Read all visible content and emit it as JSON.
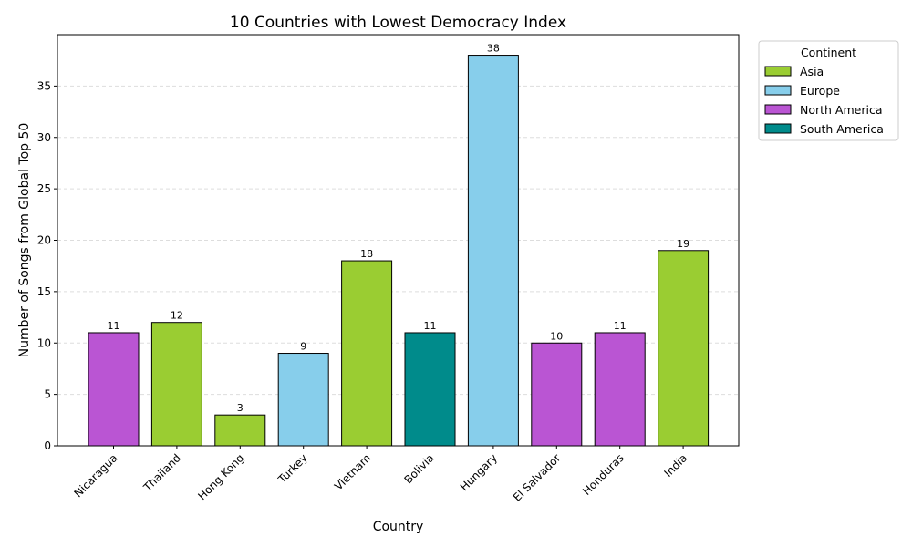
{
  "chart_data": {
    "type": "bar",
    "title": "10 Countries with Lowest Democracy Index",
    "xlabel": "Country",
    "ylabel": "Number of Songs from Global Top 50",
    "ylim": [
      0,
      40
    ],
    "yticks": [
      0,
      5,
      10,
      15,
      20,
      25,
      30,
      35
    ],
    "grid": "y-dashed",
    "categories": [
      "Nicaragua",
      "Thailand",
      "Hong Kong",
      "Turkey",
      "Vietnam",
      "Bolivia",
      "Hungary",
      "El Salvador",
      "Honduras",
      "India"
    ],
    "values": [
      11,
      12,
      3,
      9,
      18,
      11,
      38,
      10,
      11,
      19
    ],
    "bar_continents": [
      "North America",
      "Asia",
      "Asia",
      "Europe",
      "Asia",
      "South America",
      "Europe",
      "North America",
      "North America",
      "Asia"
    ],
    "legend": {
      "title": "Continent",
      "placement": "outside-top-right",
      "entries": [
        {
          "name": "Asia",
          "color": "#9acd32"
        },
        {
          "name": "Europe",
          "color": "#87ceeb"
        },
        {
          "name": "North America",
          "color": "#ba55d3"
        },
        {
          "name": "South America",
          "color": "#008b8b"
        }
      ]
    }
  }
}
